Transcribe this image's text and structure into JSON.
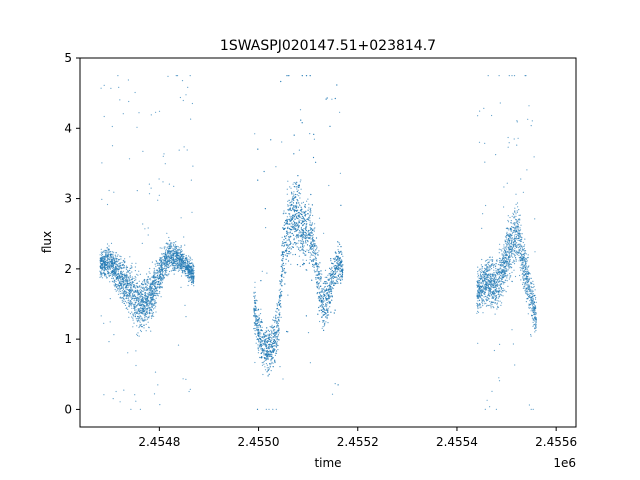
{
  "chart_data": {
    "type": "scatter",
    "title": "1SWASPJ020147.51+023814.7",
    "xlabel": "time",
    "ylabel": "flux",
    "x_offset_label": "1e6",
    "xlim": [
      2454640,
      2455640
    ],
    "ylim": [
      -0.25,
      5.0
    ],
    "xticks": [
      2454800,
      2455000,
      2455200,
      2455400,
      2455600
    ],
    "xtick_labels": [
      "2.4548",
      "2.4550",
      "2.4552",
      "2.4554",
      "2.4556"
    ],
    "yticks": [
      0,
      1,
      2,
      3,
      4,
      5
    ],
    "ytick_labels": [
      "0",
      "1",
      "2",
      "3",
      "4",
      "5"
    ],
    "grid": false,
    "marker_color": "#1f77b4",
    "series": [
      {
        "segments": [
          {
            "x": [
              2454680,
              2454700,
              2454720,
              2454740,
              2454760,
              2454780,
              2454800,
              2454820,
              2454840,
              2454860,
              2454870
            ],
            "y": [
              2.05,
              2.1,
              1.9,
              1.7,
              1.5,
              1.55,
              1.9,
              2.2,
              2.15,
              2.0,
              1.9
            ],
            "spread": [
              0.3,
              0.4,
              0.5,
              0.6,
              0.7,
              0.6,
              0.5,
              0.4,
              0.3,
              0.3,
              0.3
            ]
          },
          {
            "x": [
              2454990,
              2455000,
              2455010,
              2455020,
              2455030,
              2455040,
              2455050,
              2455060,
              2455070,
              2455080,
              2455090,
              2455100,
              2455110,
              2455120,
              2455130,
              2455140,
              2455150,
              2455160,
              2455170
            ],
            "y": [
              1.5,
              1.1,
              0.9,
              0.85,
              0.95,
              1.2,
              2.3,
              2.6,
              2.8,
              2.7,
              2.5,
              2.6,
              2.4,
              1.8,
              1.5,
              1.6,
              1.9,
              2.1,
              2.0
            ],
            "spread": [
              0.6,
              0.6,
              0.6,
              0.6,
              0.6,
              0.6,
              0.8,
              0.9,
              1.0,
              1.0,
              0.8,
              0.8,
              0.7,
              0.8,
              0.7,
              0.6,
              0.5,
              0.5,
              0.4
            ]
          },
          {
            "x": [
              2455440,
              2455460,
              2455480,
              2455500,
              2455520,
              2455540,
              2455560
            ],
            "y": [
              1.65,
              1.85,
              1.75,
              2.15,
              2.55,
              1.9,
              1.3
            ],
            "spread": [
              0.5,
              0.6,
              0.6,
              0.7,
              0.8,
              0.6,
              0.5
            ]
          }
        ]
      }
    ]
  }
}
